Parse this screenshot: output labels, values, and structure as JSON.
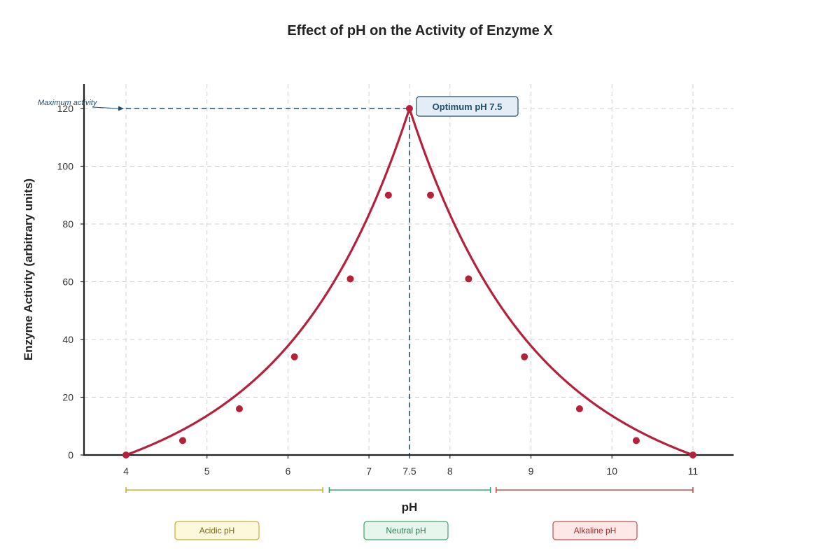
{
  "chart_data": {
    "type": "line",
    "title": "Effect of pH on the Activity of Enzyme X",
    "xlabel": "pH",
    "ylabel": "Enzyme Activity (arbitrary units)",
    "xlim": [
      3.5,
      11.5
    ],
    "ylim": [
      0,
      128
    ],
    "x_ticks": [
      4,
      5,
      6,
      7,
      7.5,
      8,
      9,
      10,
      11
    ],
    "x_tick_labels": [
      "4",
      "5",
      "6",
      "7",
      "7.5",
      "8",
      "9",
      "10",
      "11"
    ],
    "y_ticks": [
      0,
      20,
      40,
      60,
      80,
      100,
      120
    ],
    "y_tick_labels": [
      "0",
      "20",
      "40",
      "60",
      "80",
      "100",
      "120"
    ],
    "grid": true,
    "series": [
      {
        "color": "#b5203b",
        "points": [
          {
            "x": 4.0,
            "y": 0
          },
          {
            "x": 4.7,
            "y": 5
          },
          {
            "x": 5.4,
            "y": 16
          },
          {
            "x": 6.08,
            "y": 34
          },
          {
            "x": 6.77,
            "y": 61
          },
          {
            "x": 7.24,
            "y": 90
          },
          {
            "x": 7.5,
            "y": 120
          },
          {
            "x": 7.76,
            "y": 90
          },
          {
            "x": 8.23,
            "y": 61
          },
          {
            "x": 8.92,
            "y": 34
          },
          {
            "x": 9.6,
            "y": 16
          },
          {
            "x": 10.3,
            "y": 5
          },
          {
            "x": 11.0,
            "y": 0
          }
        ]
      }
    ],
    "annotations": {
      "optimum_label": "Optimum pH 7.5",
      "optimum_x": 7.5,
      "optimum_y": 120,
      "maximum_label": "Maximum activity"
    },
    "regions": [
      {
        "label": "Acidic pH",
        "from": 4.0,
        "to": 6.43,
        "color": "#c8b22a",
        "fill": "#fdf7dc",
        "text_color": "#7a6a10"
      },
      {
        "label": "Neutral pH",
        "from": 6.51,
        "to": 8.5,
        "color": "#3aa66e",
        "fill": "#e6f6ec",
        "text_color": "#2f7a50"
      },
      {
        "label": "Alkaline pH",
        "from": 8.57,
        "to": 11.0,
        "color": "#c0504d",
        "fill": "#fde8e7",
        "text_color": "#9a2f2c"
      }
    ],
    "colors": {
      "curve": "#b5203b",
      "guide": "#1f4e6e",
      "annotation_box_fill": "#e4edf5",
      "annotation_box_stroke": "#1f4e6e"
    }
  }
}
